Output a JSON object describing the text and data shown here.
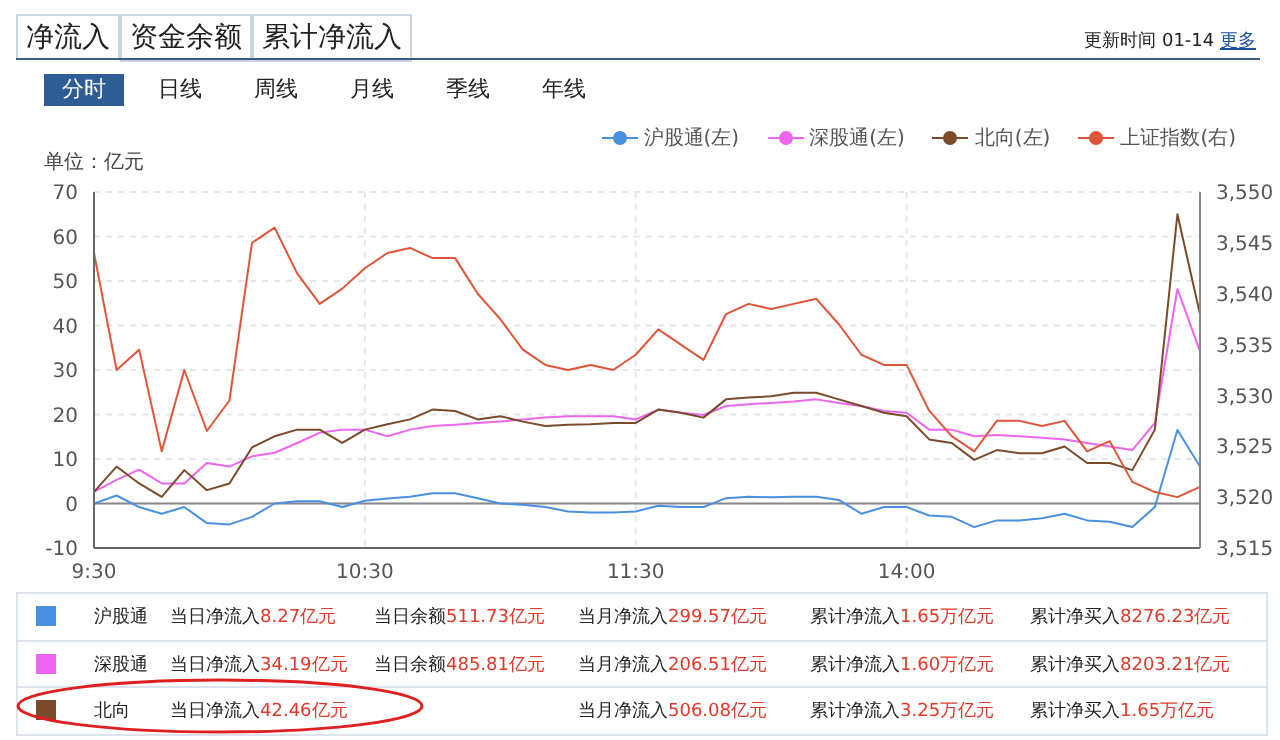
{
  "chart_data": {
    "type": "line",
    "ylabel": "单位：亿元",
    "categories": [
      "9:30",
      null,
      null,
      null,
      null,
      null,
      null,
      null,
      null,
      null,
      null,
      null,
      "10:30",
      null,
      null,
      null,
      null,
      null,
      null,
      null,
      null,
      null,
      null,
      null,
      "11:30",
      null,
      null,
      null,
      null,
      null,
      null,
      null,
      null,
      null,
      null,
      null,
      "14:00",
      null,
      null,
      null,
      null,
      null,
      null,
      null,
      null,
      null,
      null,
      null,
      null,
      null
    ],
    "ylim": [
      -10,
      70
    ],
    "yticks": [
      -10,
      0,
      10,
      20,
      30,
      40,
      50,
      60,
      70
    ],
    "y2lim": [
      3515,
      3550
    ],
    "y2ticks": [
      {
        "value": 3515,
        "label": "3,515"
      },
      {
        "value": 3520,
        "label": "3,520"
      },
      {
        "value": 3525,
        "label": "3,525"
      },
      {
        "value": 3530,
        "label": "3,530"
      },
      {
        "value": 3535,
        "label": "3,535"
      },
      {
        "value": 3540,
        "label": "3,540"
      },
      {
        "value": 3545,
        "label": "3,545"
      },
      {
        "value": 3550,
        "label": "3,550"
      }
    ],
    "series": [
      {
        "name": "沪股通(左)",
        "color": "#4a90e2",
        "values": [
          0,
          1.8,
          -0.8,
          -2.3,
          -0.8,
          -4.4,
          -4.7,
          -3,
          0,
          0.5,
          0.5,
          -0.8,
          0.6,
          1.1,
          1.5,
          2.3,
          2.3,
          1.2,
          0,
          -0.3,
          -0.8,
          -1.8,
          -2,
          -2,
          -1.8,
          -0.5,
          -0.8,
          -0.8,
          1.2,
          1.5,
          1.4,
          1.5,
          1.5,
          0.8,
          -2.3,
          -0.8,
          -0.8,
          -2.7,
          -3,
          -5.3,
          -3.8,
          -3.8,
          -3.3,
          -2.3,
          -3.8,
          -4.1,
          -5.3,
          -0.8,
          16.5,
          8.3
        ]
      },
      {
        "name": "深股通(左)",
        "color": "#ee66ee",
        "values": [
          2.6,
          5.3,
          7.6,
          4.5,
          4.5,
          9.1,
          8.3,
          10.6,
          11.4,
          13.6,
          15.9,
          16.6,
          16.6,
          15.1,
          16.6,
          17.4,
          17.7,
          18.1,
          18.4,
          18.9,
          19.3,
          19.6,
          19.6,
          19.6,
          18.9,
          21.1,
          20.4,
          19.9,
          21.9,
          22.3,
          22.6,
          22.9,
          23.4,
          22.6,
          21.9,
          20.8,
          20.4,
          16.6,
          16.6,
          15.1,
          15.4,
          15.1,
          14.8,
          14.4,
          13.6,
          12.8,
          12,
          18.1,
          48.2,
          34.2
        ]
      },
      {
        "name": "北向(左)",
        "color": "#7a4a2a",
        "values": [
          2.6,
          8.3,
          4.5,
          1.5,
          7.5,
          3,
          4.5,
          12.6,
          15.1,
          16.6,
          16.6,
          13.6,
          16.6,
          17.8,
          18.9,
          21.1,
          20.8,
          18.9,
          19.6,
          18.4,
          17.4,
          17.7,
          17.8,
          18.1,
          18.1,
          21.1,
          20.4,
          19.3,
          23.4,
          23.8,
          24.1,
          24.9,
          24.9,
          23.4,
          21.9,
          20.4,
          19.6,
          14.4,
          13.6,
          9.8,
          12,
          11.3,
          11.3,
          12.8,
          9.1,
          9.1,
          7.5,
          16.6,
          65,
          42.5
        ]
      },
      {
        "name": "上证指数(右)",
        "color": "#e0553a",
        "axis": "y2",
        "values": [
          3544,
          3532.5,
          3534.5,
          3524.5,
          3532.5,
          3526.5,
          3529.5,
          3545,
          3546.5,
          3542,
          3539,
          3540.5,
          3542.5,
          3544,
          3544.5,
          3543.5,
          3543.5,
          3540,
          3537.5,
          3534.5,
          3533,
          3532.5,
          3533,
          3532.5,
          3534,
          3536.5,
          3535,
          3533.5,
          3538,
          3539,
          3538.5,
          3539,
          3539.5,
          3537,
          3534,
          3533,
          3533,
          3528.5,
          3526,
          3524.5,
          3527.5,
          3527.5,
          3527,
          3527.5,
          3524.5,
          3525.5,
          3521.5,
          3520.5,
          3520,
          3521
        ]
      }
    ],
    "grid": true,
    "legend": "top right",
    "ref_lines": [
      {
        "axis": "y",
        "value": 0,
        "color": "#888888"
      }
    ],
    "annotations": [
      "净流入",
      "资金余额",
      "累计净流入",
      "更新时间 01-14",
      "更多",
      "分时",
      "日线",
      "周线",
      "月线",
      "季线",
      "年线",
      "沪股通",
      "当日净流入8.27亿元",
      "当日余额511.73亿元",
      "当月净流入299.57亿元",
      "累计净流入1.65万亿元",
      "累计净买入8276.23亿元",
      "深股通",
      "当日净流入34.19亿元",
      "当日余额485.81亿元",
      "当月净流入206.51亿元",
      "累计净流入1.60万亿元",
      "累计净买入8203.21亿元",
      "北向",
      "当日净流入42.46亿元",
      "当月净流入506.08亿元",
      "累计净流入3.25万亿元",
      "累计净买入1.65万亿元"
    ]
  }
}
